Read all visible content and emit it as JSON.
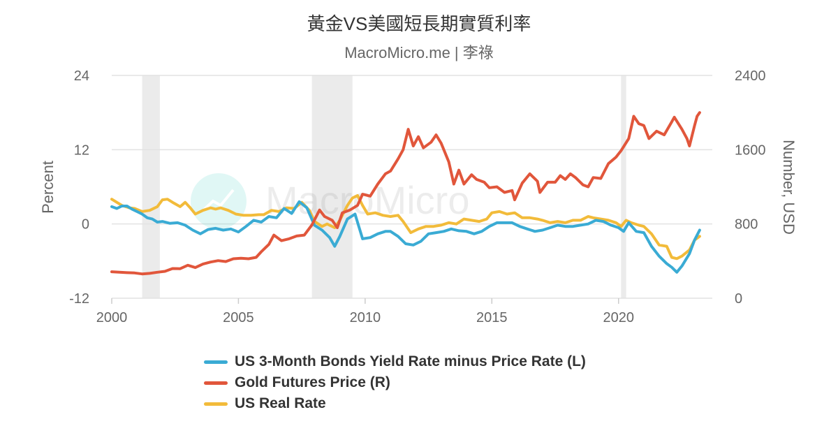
{
  "title": "黃金VS美國短長期實質利率",
  "subtitle": "MacroMicro.me | 李祿",
  "watermark": "MacroMicro",
  "colors": {
    "blue": "#3AABD4",
    "red": "#E1563B",
    "yellow": "#F2BB3A",
    "recession": "#EBEBEB",
    "grid": "#E2E2E2"
  },
  "chart_data": {
    "type": "line",
    "title": "黃金VS美國短長期實質利率",
    "subtitle": "MacroMicro.me | 李祿",
    "grid": true,
    "legend_position": "bottom",
    "x_ticks": [
      "2000",
      "2005",
      "2010",
      "2015",
      "2020"
    ],
    "y_left": {
      "label": "Percent",
      "range": [
        -12,
        24
      ],
      "ticks": [
        "-12",
        "0",
        "12",
        "24"
      ]
    },
    "y_right": {
      "label": "Number, USD",
      "range": [
        0,
        2400
      ],
      "ticks": [
        "0",
        "800",
        "1600",
        "2400"
      ]
    },
    "recessions": [
      [
        2001.2,
        2001.9
      ],
      [
        2007.9,
        2009.5
      ],
      [
        2020.1,
        2020.3
      ]
    ],
    "series": [
      {
        "name": "US 3-Month Bonds Yield Rate minus Price Rate (L)",
        "axis": "left",
        "color": "#3AABD4",
        "points": [
          [
            2000.0,
            2.8
          ],
          [
            2000.2,
            2.5
          ],
          [
            2000.4,
            2.9
          ],
          [
            2000.6,
            2.9
          ],
          [
            2000.8,
            2.4
          ],
          [
            2001.0,
            2.0
          ],
          [
            2001.2,
            1.6
          ],
          [
            2001.4,
            1.0
          ],
          [
            2001.6,
            0.8
          ],
          [
            2001.8,
            0.3
          ],
          [
            2002.0,
            0.4
          ],
          [
            2002.3,
            0.1
          ],
          [
            2002.6,
            0.2
          ],
          [
            2002.9,
            -0.2
          ],
          [
            2003.2,
            -1.0
          ],
          [
            2003.5,
            -1.6
          ],
          [
            2003.8,
            -0.9
          ],
          [
            2004.1,
            -0.7
          ],
          [
            2004.4,
            -1.0
          ],
          [
            2004.7,
            -0.8
          ],
          [
            2005.0,
            -1.3
          ],
          [
            2005.3,
            -0.4
          ],
          [
            2005.6,
            0.6
          ],
          [
            2005.9,
            0.3
          ],
          [
            2006.2,
            1.2
          ],
          [
            2006.5,
            1.0
          ],
          [
            2006.8,
            2.5
          ],
          [
            2007.1,
            1.7
          ],
          [
            2007.4,
            3.6
          ],
          [
            2007.7,
            2.6
          ],
          [
            2008.0,
            -0.2
          ],
          [
            2008.3,
            -1.0
          ],
          [
            2008.6,
            -2.2
          ],
          [
            2008.8,
            -3.6
          ],
          [
            2009.0,
            -2.0
          ],
          [
            2009.3,
            0.8
          ],
          [
            2009.6,
            1.6
          ],
          [
            2009.9,
            -2.4
          ],
          [
            2010.2,
            -2.2
          ],
          [
            2010.5,
            -1.6
          ],
          [
            2010.8,
            -1.2
          ],
          [
            2011.0,
            -1.2
          ],
          [
            2011.3,
            -2.0
          ],
          [
            2011.6,
            -3.2
          ],
          [
            2011.9,
            -3.4
          ],
          [
            2012.2,
            -2.8
          ],
          [
            2012.5,
            -1.6
          ],
          [
            2012.8,
            -1.4
          ],
          [
            2013.1,
            -1.2
          ],
          [
            2013.4,
            -0.8
          ],
          [
            2013.7,
            -1.1
          ],
          [
            2014.0,
            -1.2
          ],
          [
            2014.3,
            -1.6
          ],
          [
            2014.6,
            -1.2
          ],
          [
            2014.9,
            -0.4
          ],
          [
            2015.2,
            0.2
          ],
          [
            2015.5,
            0.2
          ],
          [
            2015.8,
            0.2
          ],
          [
            2016.1,
            -0.4
          ],
          [
            2016.4,
            -0.8
          ],
          [
            2016.7,
            -1.2
          ],
          [
            2017.0,
            -1.0
          ],
          [
            2017.3,
            -0.6
          ],
          [
            2017.6,
            -0.2
          ],
          [
            2017.9,
            -0.4
          ],
          [
            2018.2,
            -0.4
          ],
          [
            2018.5,
            -0.2
          ],
          [
            2018.8,
            0.0
          ],
          [
            2019.1,
            0.6
          ],
          [
            2019.4,
            0.4
          ],
          [
            2019.7,
            -0.2
          ],
          [
            2020.0,
            -0.6
          ],
          [
            2020.2,
            -1.2
          ],
          [
            2020.4,
            0.2
          ],
          [
            2020.7,
            -1.2
          ],
          [
            2021.0,
            -1.4
          ],
          [
            2021.3,
            -3.6
          ],
          [
            2021.6,
            -5.2
          ],
          [
            2021.9,
            -6.4
          ],
          [
            2022.1,
            -7.0
          ],
          [
            2022.3,
            -7.8
          ],
          [
            2022.5,
            -6.8
          ],
          [
            2022.8,
            -4.8
          ],
          [
            2023.0,
            -2.6
          ],
          [
            2023.2,
            -1.0
          ]
        ]
      },
      {
        "name": "Gold Futures Price (R)",
        "axis": "right",
        "color": "#E1563B",
        "points": [
          [
            2000.0,
            285
          ],
          [
            2000.3,
            280
          ],
          [
            2000.6,
            275
          ],
          [
            2000.9,
            272
          ],
          [
            2001.2,
            262
          ],
          [
            2001.5,
            268
          ],
          [
            2001.8,
            280
          ],
          [
            2002.1,
            290
          ],
          [
            2002.4,
            320
          ],
          [
            2002.7,
            318
          ],
          [
            2003.0,
            355
          ],
          [
            2003.3,
            330
          ],
          [
            2003.6,
            368
          ],
          [
            2003.9,
            390
          ],
          [
            2004.2,
            405
          ],
          [
            2004.5,
            395
          ],
          [
            2004.8,
            425
          ],
          [
            2005.1,
            430
          ],
          [
            2005.4,
            425
          ],
          [
            2005.7,
            440
          ],
          [
            2005.9,
            500
          ],
          [
            2006.2,
            580
          ],
          [
            2006.4,
            680
          ],
          [
            2006.7,
            620
          ],
          [
            2007.0,
            640
          ],
          [
            2007.3,
            670
          ],
          [
            2007.6,
            680
          ],
          [
            2007.9,
            790
          ],
          [
            2008.2,
            950
          ],
          [
            2008.4,
            880
          ],
          [
            2008.7,
            840
          ],
          [
            2008.9,
            760
          ],
          [
            2009.1,
            920
          ],
          [
            2009.4,
            950
          ],
          [
            2009.7,
            1000
          ],
          [
            2009.9,
            1120
          ],
          [
            2010.2,
            1100
          ],
          [
            2010.5,
            1230
          ],
          [
            2010.8,
            1340
          ],
          [
            2011.0,
            1370
          ],
          [
            2011.3,
            1500
          ],
          [
            2011.5,
            1600
          ],
          [
            2011.7,
            1820
          ],
          [
            2011.9,
            1640
          ],
          [
            2012.1,
            1740
          ],
          [
            2012.3,
            1620
          ],
          [
            2012.6,
            1680
          ],
          [
            2012.8,
            1760
          ],
          [
            2013.0,
            1670
          ],
          [
            2013.3,
            1470
          ],
          [
            2013.5,
            1230
          ],
          [
            2013.7,
            1380
          ],
          [
            2013.9,
            1230
          ],
          [
            2014.2,
            1330
          ],
          [
            2014.4,
            1280
          ],
          [
            2014.7,
            1250
          ],
          [
            2014.9,
            1190
          ],
          [
            2015.2,
            1200
          ],
          [
            2015.5,
            1140
          ],
          [
            2015.8,
            1160
          ],
          [
            2015.9,
            1060
          ],
          [
            2016.2,
            1240
          ],
          [
            2016.5,
            1340
          ],
          [
            2016.8,
            1260
          ],
          [
            2016.9,
            1140
          ],
          [
            2017.2,
            1250
          ],
          [
            2017.5,
            1250
          ],
          [
            2017.7,
            1320
          ],
          [
            2017.9,
            1280
          ],
          [
            2018.1,
            1340
          ],
          [
            2018.3,
            1300
          ],
          [
            2018.6,
            1220
          ],
          [
            2018.8,
            1200
          ],
          [
            2019.0,
            1300
          ],
          [
            2019.3,
            1290
          ],
          [
            2019.6,
            1450
          ],
          [
            2019.9,
            1520
          ],
          [
            2020.1,
            1590
          ],
          [
            2020.4,
            1720
          ],
          [
            2020.6,
            1960
          ],
          [
            2020.8,
            1880
          ],
          [
            2021.0,
            1860
          ],
          [
            2021.2,
            1720
          ],
          [
            2021.5,
            1800
          ],
          [
            2021.8,
            1760
          ],
          [
            2022.1,
            1900
          ],
          [
            2022.2,
            1950
          ],
          [
            2022.5,
            1820
          ],
          [
            2022.7,
            1720
          ],
          [
            2022.8,
            1640
          ],
          [
            2023.0,
            1860
          ],
          [
            2023.1,
            1960
          ],
          [
            2023.2,
            2000
          ]
        ]
      },
      {
        "name": "US Real Rate",
        "axis": "left",
        "color": "#F2BB3A",
        "points": [
          [
            2000.0,
            4.0
          ],
          [
            2000.2,
            3.5
          ],
          [
            2000.4,
            3.0
          ],
          [
            2000.7,
            2.6
          ],
          [
            2000.9,
            2.5
          ],
          [
            2001.2,
            2.0
          ],
          [
            2001.5,
            2.2
          ],
          [
            2001.8,
            2.8
          ],
          [
            2002.0,
            3.9
          ],
          [
            2002.2,
            4.0
          ],
          [
            2002.4,
            3.5
          ],
          [
            2002.7,
            2.8
          ],
          [
            2002.9,
            3.5
          ],
          [
            2003.1,
            2.6
          ],
          [
            2003.3,
            1.6
          ],
          [
            2003.6,
            2.2
          ],
          [
            2003.9,
            2.6
          ],
          [
            2004.1,
            2.4
          ],
          [
            2004.3,
            2.6
          ],
          [
            2004.6,
            2.2
          ],
          [
            2004.9,
            1.6
          ],
          [
            2005.2,
            1.4
          ],
          [
            2005.5,
            1.4
          ],
          [
            2005.8,
            1.5
          ],
          [
            2006.0,
            1.5
          ],
          [
            2006.3,
            2.2
          ],
          [
            2006.6,
            2.0
          ],
          [
            2006.9,
            2.6
          ],
          [
            2007.2,
            2.5
          ],
          [
            2007.5,
            3.5
          ],
          [
            2007.8,
            2.2
          ],
          [
            2008.0,
            0.4
          ],
          [
            2008.3,
            -0.4
          ],
          [
            2008.5,
            0.0
          ],
          [
            2008.8,
            -0.6
          ],
          [
            2009.0,
            0.6
          ],
          [
            2009.3,
            3.0
          ],
          [
            2009.5,
            4.2
          ],
          [
            2009.7,
            4.6
          ],
          [
            2009.9,
            3.0
          ],
          [
            2010.1,
            1.6
          ],
          [
            2010.4,
            1.8
          ],
          [
            2010.7,
            1.4
          ],
          [
            2011.0,
            1.2
          ],
          [
            2011.3,
            1.4
          ],
          [
            2011.5,
            0.4
          ],
          [
            2011.8,
            -1.4
          ],
          [
            2012.1,
            -0.8
          ],
          [
            2012.4,
            -0.4
          ],
          [
            2012.7,
            -0.4
          ],
          [
            2013.0,
            -0.2
          ],
          [
            2013.3,
            0.2
          ],
          [
            2013.6,
            0.0
          ],
          [
            2013.9,
            0.8
          ],
          [
            2014.2,
            0.6
          ],
          [
            2014.5,
            0.4
          ],
          [
            2014.8,
            0.8
          ],
          [
            2015.0,
            1.8
          ],
          [
            2015.3,
            2.0
          ],
          [
            2015.6,
            1.6
          ],
          [
            2015.9,
            1.8
          ],
          [
            2016.2,
            1.0
          ],
          [
            2016.5,
            1.0
          ],
          [
            2016.8,
            0.8
          ],
          [
            2017.0,
            0.6
          ],
          [
            2017.3,
            0.2
          ],
          [
            2017.6,
            0.4
          ],
          [
            2017.9,
            0.2
          ],
          [
            2018.2,
            0.6
          ],
          [
            2018.5,
            0.6
          ],
          [
            2018.8,
            1.2
          ],
          [
            2019.0,
            1.0
          ],
          [
            2019.3,
            0.8
          ],
          [
            2019.6,
            0.6
          ],
          [
            2019.9,
            0.2
          ],
          [
            2020.1,
            -0.4
          ],
          [
            2020.3,
            0.6
          ],
          [
            2020.5,
            0.2
          ],
          [
            2020.8,
            -0.2
          ],
          [
            2021.0,
            -0.4
          ],
          [
            2021.3,
            -1.6
          ],
          [
            2021.6,
            -3.4
          ],
          [
            2021.9,
            -3.6
          ],
          [
            2022.1,
            -5.4
          ],
          [
            2022.3,
            -5.6
          ],
          [
            2022.5,
            -5.2
          ],
          [
            2022.8,
            -4.2
          ],
          [
            2023.0,
            -2.6
          ],
          [
            2023.2,
            -2.0
          ]
        ]
      }
    ]
  },
  "legend": [
    {
      "label": "US 3-Month Bonds Yield Rate minus Price Rate (L)",
      "color": "#3AABD4"
    },
    {
      "label": "Gold Futures Price (R)",
      "color": "#E1563B"
    },
    {
      "label": "US Real Rate",
      "color": "#F2BB3A"
    }
  ]
}
